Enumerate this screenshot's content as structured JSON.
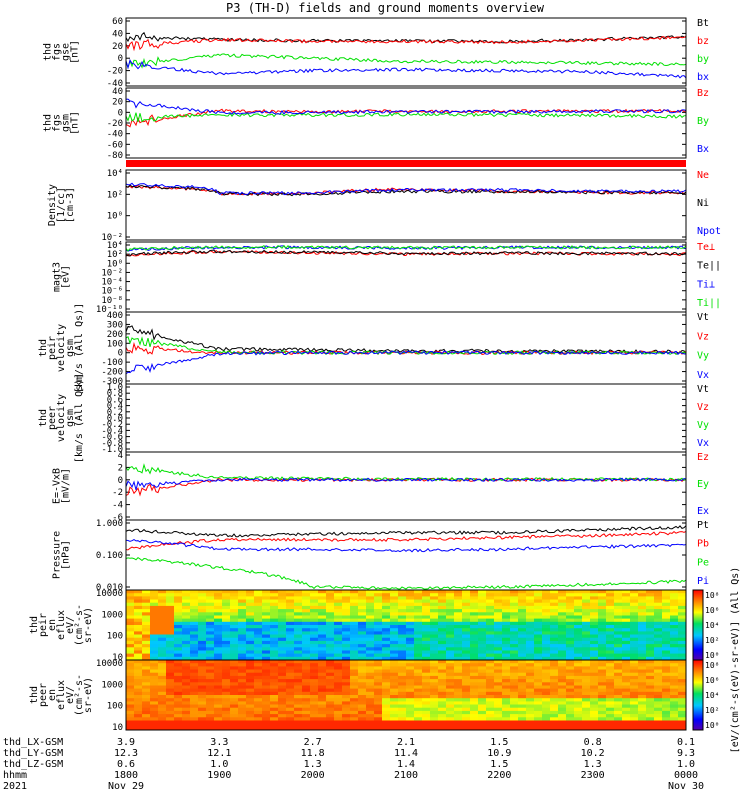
{
  "title": "P3 (TH-D) fields and ground moments overview",
  "colors": {
    "black": "#000000",
    "red": "#ff0000",
    "green": "#00e000",
    "blue": "#0000ff"
  },
  "panels": [
    {
      "id": "fgs-gse",
      "ylabel": [
        "thd",
        "fgs",
        "gse",
        "[nT]"
      ],
      "ticks": [
        "60",
        "40",
        "20",
        "0",
        "-20",
        "-40"
      ],
      "legend": [
        {
          "label": "Bt",
          "color": "black"
        },
        {
          "label": "bz",
          "color": "red"
        },
        {
          "label": "by",
          "color": "green"
        },
        {
          "label": "bx",
          "color": "blue"
        }
      ]
    },
    {
      "id": "fgs-gsm",
      "ylabel": [
        "thd",
        "fgs",
        "gsm",
        "[nT]"
      ],
      "ticks": [
        "40",
        "20",
        "0",
        "-20",
        "-40",
        "-60",
        "-80"
      ],
      "legend": [
        {
          "label": "Bz",
          "color": "red"
        },
        {
          "label": "By",
          "color": "green"
        },
        {
          "label": "Bx",
          "color": "blue"
        }
      ]
    },
    {
      "id": "density",
      "ylabel": [
        "Density",
        "[1/cc]",
        "[cm-3]"
      ],
      "ticks": [
        "10⁴",
        "10²",
        "10⁰",
        "10⁻²"
      ],
      "legend": [
        {
          "label": "Ne",
          "color": "red"
        },
        {
          "label": "Ni",
          "color": "black"
        },
        {
          "label": "Npot",
          "color": "blue"
        }
      ]
    },
    {
      "id": "temperature",
      "ylabel": [
        "magt3",
        "[eV]"
      ],
      "ticks": [
        "10⁴",
        "10²",
        "10⁰",
        "10⁻²",
        "10⁻⁴",
        "10⁻⁶",
        "10⁻⁸",
        "10⁻¹⁰"
      ],
      "legend": [
        {
          "label": "Te⊥",
          "color": "red"
        },
        {
          "label": "Te||",
          "color": "black"
        },
        {
          "label": "Ti⊥",
          "color": "blue"
        },
        {
          "label": "Ti||",
          "color": "green"
        }
      ]
    },
    {
      "id": "peir-velocity",
      "ylabel": [
        "thd",
        "peir",
        "velocity",
        "gsm",
        "[km/s (All Qs)]"
      ],
      "ticks": [
        "400",
        "300",
        "200",
        "100",
        "0",
        "-100",
        "-200",
        "-300"
      ],
      "legend": [
        {
          "label": "Vt",
          "color": "black"
        },
        {
          "label": "Vz",
          "color": "red"
        },
        {
          "label": "Vy",
          "color": "green"
        },
        {
          "label": "Vx",
          "color": "blue"
        }
      ]
    },
    {
      "id": "peer-velocity",
      "ylabel": [
        "thd",
        "peer",
        "velocity",
        "gsm",
        "[km/s (All Qs)]"
      ],
      "ticks": [
        "1.0",
        "0.8",
        "0.6",
        "0.4",
        "0.2",
        "0.0",
        "-0.2",
        "-0.4",
        "-0.6",
        "-0.8",
        "-1.0"
      ],
      "legend": [
        {
          "label": "Vt",
          "color": "black"
        },
        {
          "label": "Vz",
          "color": "red"
        },
        {
          "label": "Vy",
          "color": "green"
        },
        {
          "label": "Vx",
          "color": "blue"
        }
      ]
    },
    {
      "id": "efield",
      "ylabel": [
        "E=-VxB",
        "[mV/m]"
      ],
      "ticks": [
        "4",
        "2",
        "0",
        "-2",
        "-4",
        "-6"
      ],
      "legend": [
        {
          "label": "Ez",
          "color": "red"
        },
        {
          "label": "Ey",
          "color": "green"
        },
        {
          "label": "Ex",
          "color": "blue"
        }
      ]
    },
    {
      "id": "pressure",
      "ylabel": [
        "Pressure",
        "[nPa]"
      ],
      "ticks": [
        "1.000",
        "0.100",
        "0.010"
      ],
      "legend": [
        {
          "label": "Pt",
          "color": "black"
        },
        {
          "label": "Pb",
          "color": "red"
        },
        {
          "label": "Pe",
          "color": "green"
        },
        {
          "label": "Pi",
          "color": "blue"
        }
      ]
    },
    {
      "id": "peir-eflux",
      "ylabel": [
        "thd",
        "peir",
        "en",
        "eflux",
        "eV/",
        "(cm²-s-",
        "sr-eV)"
      ],
      "ticks": [
        "10000",
        "1000",
        "100",
        "10"
      ]
    },
    {
      "id": "peer-eflux",
      "ylabel": [
        "thd",
        "peer",
        "en",
        "eflux",
        "eV/",
        "(cm²-s-",
        "sr-eV)"
      ],
      "ticks": [
        "10000",
        "1000",
        "100",
        "10"
      ]
    }
  ],
  "colorbar": {
    "label": "[eV/(cm²-s(eV)-sr-eV)] (All Qs)",
    "ticks": [
      "10⁸",
      "10⁶",
      "10⁴",
      "10²",
      "10⁰"
    ]
  },
  "footer": {
    "rows": [
      {
        "name": "thd_LX-GSM",
        "values": [
          "3.9",
          "3.3",
          "2.7",
          "2.1",
          "1.5",
          "0.8",
          "0.1"
        ]
      },
      {
        "name": "thd_LY-GSM",
        "values": [
          "12.3",
          "12.1",
          "11.8",
          "11.4",
          "10.9",
          "10.2",
          "9.3"
        ]
      },
      {
        "name": "thd_LZ-GSM",
        "values": [
          "0.6",
          "1.0",
          "1.3",
          "1.4",
          "1.5",
          "1.3",
          "1.0"
        ]
      },
      {
        "name": "hhmm",
        "values": [
          "1800",
          "1900",
          "2000",
          "2100",
          "2200",
          "2300",
          "0000"
        ]
      },
      {
        "name": "2021",
        "values": [
          "Nov 29",
          "",
          "",
          "",
          "",
          "",
          "Nov 30"
        ]
      }
    ]
  },
  "chart_data": [
    {
      "type": "line",
      "title": "P3 (TH-D) fields and ground moments overview",
      "ylabel": "thd fgs gse [nT]",
      "x": [
        "1800",
        "1900",
        "2000",
        "2100",
        "2200",
        "2300",
        "0000"
      ],
      "series": [
        {
          "name": "Bt",
          "values": [
            35,
            30,
            28,
            28,
            27,
            30,
            35
          ]
        },
        {
          "name": "bz",
          "values": [
            20,
            30,
            27,
            27,
            26,
            29,
            34
          ]
        },
        {
          "name": "by",
          "values": [
            -10,
            5,
            0,
            -5,
            -6,
            -8,
            -10
          ]
        },
        {
          "name": "bx",
          "values": [
            -10,
            -25,
            -20,
            -18,
            -20,
            -22,
            -30
          ]
        }
      ],
      "ylim": [
        -40,
        60
      ]
    },
    {
      "type": "line",
      "ylabel": "thd fgs gsm [nT]",
      "x": [
        "1800",
        "1900",
        "2000",
        "2100",
        "2200",
        "2300",
        "0000"
      ],
      "series": [
        {
          "name": "Bz",
          "values": [
            -20,
            3,
            1,
            2,
            2,
            2,
            3
          ]
        },
        {
          "name": "By",
          "values": [
            -10,
            -5,
            -5,
            -4,
            -5,
            -6,
            -8
          ]
        },
        {
          "name": "Bx",
          "values": [
            20,
            -1,
            0,
            1,
            1,
            2,
            2
          ]
        }
      ],
      "ylim": [
        -80,
        40
      ]
    },
    {
      "type": "line",
      "ylabel": "Density [1/cc] [cm-3]",
      "x": [
        "1800",
        "1900",
        "2000",
        "2100",
        "2200",
        "2300",
        "0000"
      ],
      "series": [
        {
          "name": "Ne",
          "values": [
            10,
            0.3,
            0.3,
            3,
            1,
            0.5,
            0.5
          ]
        },
        {
          "name": "Ni",
          "values": [
            12,
            0.3,
            0.2,
            1,
            0.8,
            0.6,
            0.5
          ]
        },
        {
          "name": "Npot",
          "values": [
            30,
            0.4,
            0.4,
            2,
            2,
            1,
            1
          ]
        }
      ]
    },
    {
      "type": "line",
      "ylabel": "magt3 [eV]",
      "x": [
        "1800",
        "1900",
        "2000",
        "2100",
        "2200",
        "2300",
        "0000"
      ],
      "series": [
        {
          "name": "Te⊥",
          "values": [
            50,
            300,
            200,
            100,
            150,
            120,
            100
          ]
        },
        {
          "name": "Te||",
          "values": [
            60,
            400,
            250,
            130,
            170,
            150,
            120
          ]
        },
        {
          "name": "Ti⊥",
          "values": [
            800,
            3000,
            3000,
            2000,
            3000,
            3000,
            3000
          ]
        },
        {
          "name": "Ti||",
          "values": [
            900,
            3500,
            3200,
            2500,
            3200,
            3200,
            3200
          ]
        }
      ]
    },
    {
      "type": "line",
      "ylabel": "thd peir velocity gsm [km/s (All Qs)]",
      "x": [
        "1800",
        "1900",
        "2000",
        "2100",
        "2200",
        "2300",
        "0000"
      ],
      "series": [
        {
          "name": "Vt",
          "values": [
            250,
            40,
            30,
            20,
            20,
            15,
            10
          ]
        },
        {
          "name": "Vz",
          "values": [
            50,
            0,
            0,
            0,
            0,
            0,
            0
          ]
        },
        {
          "name": "Vy",
          "values": [
            150,
            5,
            0,
            0,
            0,
            0,
            0
          ]
        },
        {
          "name": "Vx",
          "values": [
            -200,
            -10,
            0,
            0,
            0,
            0,
            0
          ]
        }
      ],
      "ylim": [
        -300,
        400
      ]
    },
    {
      "type": "line",
      "ylabel": "thd peer velocity gsm [km/s (All Qs)]",
      "series": [],
      "ylim": [
        -1,
        1
      ]
    },
    {
      "type": "line",
      "ylabel": "E=-VxB [mV/m]",
      "x": [
        "1800",
        "1900",
        "2000",
        "2100",
        "2200",
        "2300",
        "0000"
      ],
      "series": [
        {
          "name": "Ez",
          "values": [
            -2,
            0,
            0,
            0,
            0,
            0,
            0
          ]
        },
        {
          "name": "Ey",
          "values": [
            2,
            0.3,
            0.2,
            0.1,
            0.1,
            0.1,
            0
          ]
        },
        {
          "name": "Ex",
          "values": [
            -1,
            0,
            0,
            0,
            0,
            0,
            0
          ]
        }
      ],
      "ylim": [
        -6,
        4
      ]
    },
    {
      "type": "line",
      "ylabel": "Pressure [nPa]",
      "x": [
        "1800",
        "1900",
        "2000",
        "2100",
        "2200",
        "2300",
        "0000"
      ],
      "series": [
        {
          "name": "Pt",
          "values": [
            0.6,
            0.4,
            0.45,
            0.5,
            0.5,
            0.6,
            0.75
          ]
        },
        {
          "name": "Pb",
          "values": [
            0.15,
            0.3,
            0.3,
            0.3,
            0.35,
            0.4,
            0.5
          ]
        },
        {
          "name": "Pe",
          "values": [
            0.08,
            0.04,
            0.01,
            0.009,
            0.01,
            0.012,
            0.015
          ]
        },
        {
          "name": "Pi",
          "values": [
            0.3,
            0.15,
            0.15,
            0.14,
            0.15,
            0.18,
            0.2
          ]
        }
      ]
    },
    {
      "type": "heatmap",
      "ylabel": "thd peir en eflux eV/(cm²-s-sr-eV)",
      "ylim": [
        5,
        25000
      ]
    },
    {
      "type": "heatmap",
      "ylabel": "thd peer en eflux eV/(cm²-s-sr-eV)",
      "ylim": [
        5,
        25000
      ]
    }
  ]
}
